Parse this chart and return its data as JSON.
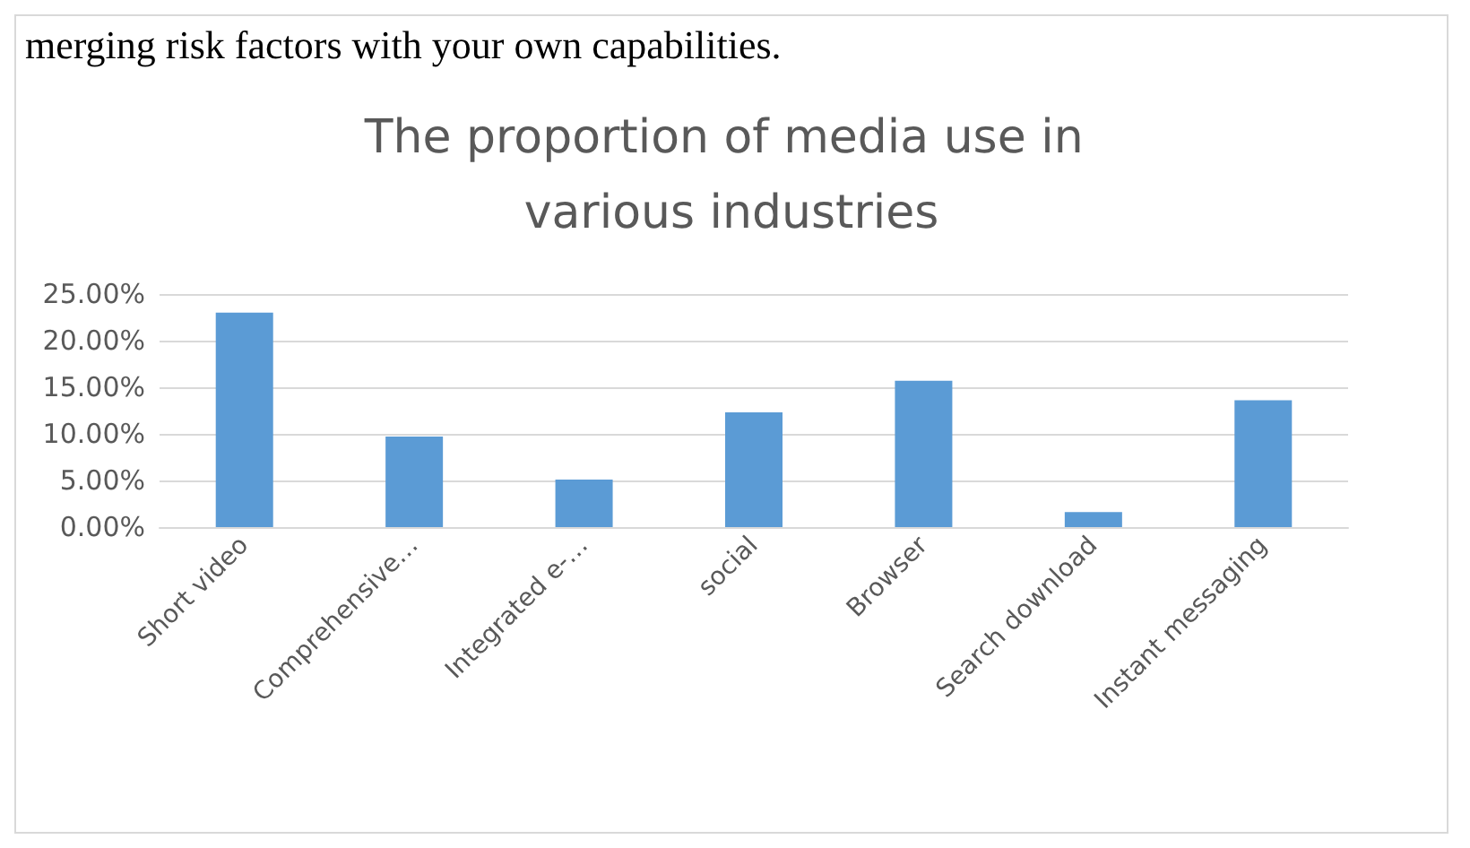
{
  "chart_data": {
    "type": "bar",
    "title": "The proportion of media use in various industries",
    "annotations": [
      "merging risk factors with your own capabilities."
    ],
    "categories": [
      "Short video",
      "Comprehensive…",
      "Integrated e-…",
      "social",
      "Browser",
      "Search download",
      "Instant messaging"
    ],
    "values": [
      23.0,
      9.7,
      5.1,
      12.3,
      15.7,
      1.6,
      13.6
    ],
    "color": "#5b9bd5",
    "ylim": [
      0,
      25
    ],
    "yticks": [
      {
        "value": 0,
        "label": "0.00%"
      },
      {
        "value": 5,
        "label": "5.00%"
      },
      {
        "value": 10,
        "label": "10.00%"
      },
      {
        "value": 15,
        "label": "15.00%"
      },
      {
        "value": 20,
        "label": "20.00%"
      },
      {
        "value": 25,
        "label": "25.00%"
      }
    ],
    "grid": "y"
  }
}
